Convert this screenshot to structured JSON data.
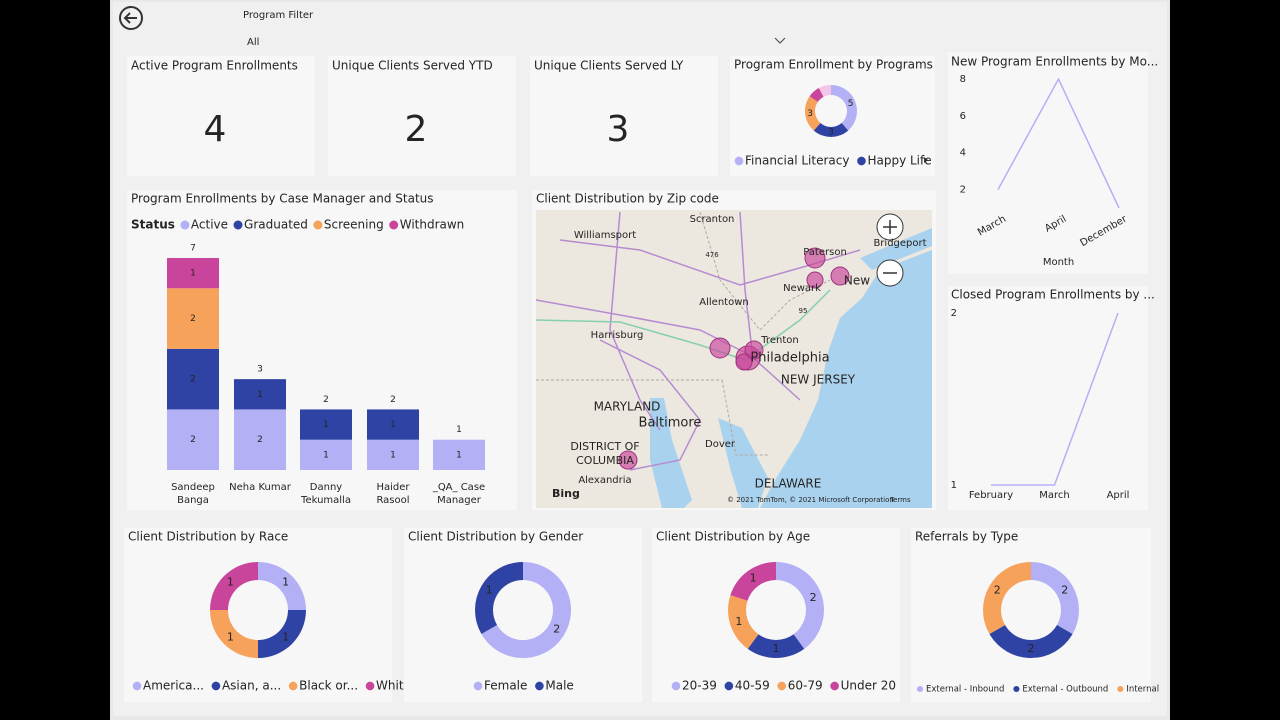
{
  "header": {
    "filter_label": "Program Filter",
    "filter_value": "All"
  },
  "cards": [
    {
      "title": "Active Program Enrollments",
      "value": 4
    },
    {
      "title": "Unique Clients Served YTD",
      "value": 2
    },
    {
      "title": "Unique Clients Served LY",
      "value": 3
    }
  ],
  "chart_data": [
    {
      "type": "donut",
      "title": "Program Enrollment by Programs",
      "categories": [
        "Financial Literacy",
        "Happy Life",
        null,
        null,
        null
      ],
      "values": [
        5,
        3,
        3,
        1,
        1
      ],
      "colors": [
        "#b3b0f5",
        "#2f43a4",
        "#f7a25a",
        "#c9449b",
        "#f3c6e8"
      ]
    },
    {
      "type": "stacked-bar",
      "title": "Program Enrollments by Case Manager and Status",
      "legend_title": "Status",
      "categories": [
        "Sandeep Banga",
        "Neha Kumar",
        "Danny Tekumalla",
        "Haider Rasool",
        "_QA_ Case Manager"
      ],
      "ylim": [
        0,
        7
      ],
      "series": [
        {
          "name": "Active",
          "color": "#b3b0f5",
          "values": [
            2,
            2,
            1,
            1,
            1
          ]
        },
        {
          "name": "Graduated",
          "color": "#2f43a4",
          "values": [
            2,
            1,
            1,
            1,
            null
          ]
        },
        {
          "name": "Screening",
          "color": "#f7a25a",
          "values": [
            2,
            null,
            null,
            null,
            null
          ]
        },
        {
          "name": "Withdrawn",
          "color": "#c9449b",
          "values": [
            1,
            null,
            null,
            null,
            null
          ]
        }
      ],
      "totals": [
        7,
        3,
        2,
        2,
        1
      ]
    },
    {
      "type": "line",
      "title": "New Program Enrollments by Mo...",
      "xlabel": "Month",
      "categories": [
        "March",
        "April",
        "December"
      ],
      "values": [
        2,
        8,
        1
      ],
      "ylim": [
        1,
        8
      ],
      "yticks": [
        2,
        4,
        6,
        8
      ],
      "color": "#b3b0f5"
    },
    {
      "type": "line",
      "title": "Closed Program Enrollments by ...",
      "categories": [
        "February",
        "March",
        "April"
      ],
      "values": [
        1,
        1,
        2
      ],
      "ylim": [
        1,
        2
      ],
      "yticks": [
        1,
        2
      ],
      "color": "#b3b0f5"
    },
    {
      "type": "donut",
      "title": "Client Distribution by Race",
      "categories": [
        "America...",
        "Asian, a...",
        "Black or...",
        "White"
      ],
      "values": [
        1,
        1,
        1,
        1
      ],
      "colors": [
        "#b3b0f5",
        "#2f43a4",
        "#f7a25a",
        "#c9449b"
      ]
    },
    {
      "type": "donut",
      "title": "Client Distribution by Gender",
      "categories": [
        "Female",
        "Male"
      ],
      "values": [
        2,
        1
      ],
      "colors": [
        "#b3b0f5",
        "#2f43a4"
      ]
    },
    {
      "type": "donut",
      "title": "Client Distribution by Age",
      "categories": [
        "20-39",
        "40-59",
        "60-79",
        "Under 20"
      ],
      "values": [
        2,
        1,
        1,
        1
      ],
      "colors": [
        "#b3b0f5",
        "#2f43a4",
        "#f7a25a",
        "#c9449b"
      ]
    },
    {
      "type": "donut",
      "title": "Referrals by Type",
      "categories": [
        "External - Inbound",
        "External - Outbound",
        "Internal"
      ],
      "values": [
        2,
        2,
        2
      ],
      "colors": [
        "#b3b0f5",
        "#2f43a4",
        "#f7a25a"
      ]
    }
  ],
  "map": {
    "title": "Client Distribution by Zip code",
    "labels": [
      "Scranton",
      "Williamsport",
      "Paterson",
      "Bridgeport",
      "Newark",
      "New",
      "Allentown",
      "Harrisburg",
      "Trenton",
      "Philadelphia",
      "NEW JERSEY",
      "MARYLAND",
      "Baltimore",
      "DISTRICT OF",
      "COLUMBIA",
      "Dover",
      "Alexandria",
      "DELAWARE",
      "476",
      "95"
    ],
    "bing": "Bing",
    "attribution": "© 2021 TomTom, © 2021 Microsoft Corporation",
    "terms": "Terms"
  }
}
